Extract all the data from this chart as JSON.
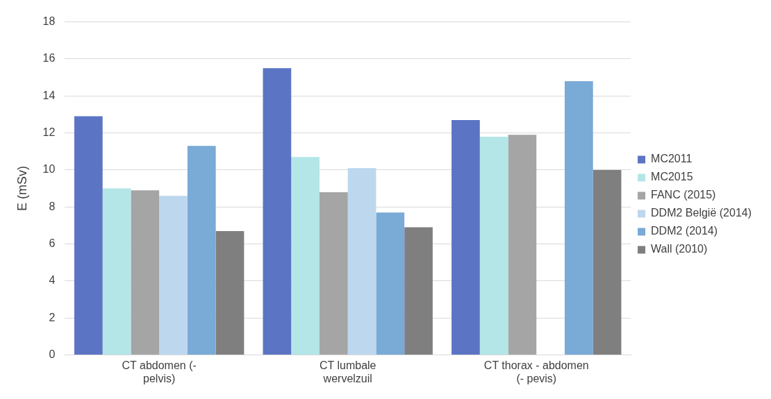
{
  "chart_data": {
    "type": "bar",
    "ylabel": "E (mSv)",
    "categories": [
      "CT abdomen (-\npelvis)",
      "CT lumbale\nwervelzuil",
      "CT thorax - abdomen\n(- pevis)"
    ],
    "series": [
      {
        "name": "MC2011",
        "color": "#5b75c4",
        "values": [
          12.9,
          15.5,
          12.7
        ]
      },
      {
        "name": "MC2015",
        "color": "#b4e6e8",
        "values": [
          9.0,
          10.7,
          11.8
        ]
      },
      {
        "name": "FANC (2015)",
        "color": "#a5a5a5",
        "values": [
          8.9,
          8.8,
          11.9
        ]
      },
      {
        "name": "DDM2 België (2014)",
        "color": "#bdd7ee",
        "values": [
          8.6,
          10.1,
          null
        ]
      },
      {
        "name": "DDM2 (2014)",
        "color": "#7aaad6",
        "values": [
          11.3,
          7.7,
          14.8
        ]
      },
      {
        "name": "Wall (2010)",
        "color": "#7f7f7f",
        "values": [
          6.7,
          6.9,
          10.0
        ]
      }
    ],
    "ylim": [
      0,
      18
    ],
    "yticks": [
      0,
      2,
      4,
      6,
      8,
      10,
      12,
      14,
      16,
      18
    ],
    "grid": "y",
    "legend": "right"
  }
}
